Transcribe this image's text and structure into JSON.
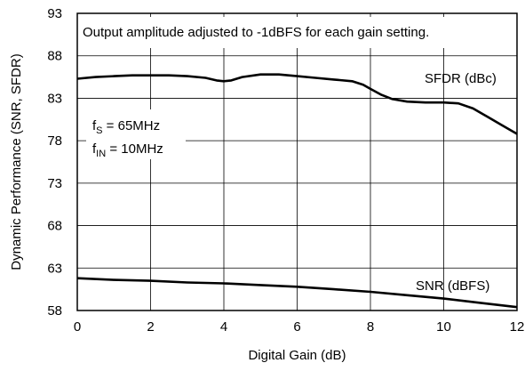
{
  "chart_data": {
    "type": "line",
    "title": "",
    "xlabel": "Digital Gain (dB)",
    "ylabel": "Dynamic Performance (SNR, SFDR)",
    "xlim": [
      0,
      12
    ],
    "ylim": [
      58,
      93
    ],
    "x_ticks": [
      0,
      2,
      4,
      6,
      8,
      10,
      12
    ],
    "y_ticks": [
      58,
      63,
      68,
      73,
      78,
      83,
      88,
      93
    ],
    "grid": true,
    "legend": "none",
    "annotations": {
      "box_note": "Output amplitude adjusted to -1dBFS for each gain setting.",
      "fs_label": "f",
      "fs_sub": "S",
      "fs_value": " = 65MHz",
      "fin_label": "f",
      "fin_sub": "IN",
      "fin_value": " = 10MHz"
    },
    "series": [
      {
        "name": "SFDR (dBc)",
        "x": [
          0,
          0.5,
          1,
          1.5,
          2,
          2.5,
          3,
          3.5,
          3.8,
          4,
          4.2,
          4.5,
          5,
          5.5,
          6,
          6.5,
          7,
          7.5,
          7.8,
          8,
          8.3,
          8.6,
          9,
          9.5,
          10,
          10.4,
          10.8,
          11.2,
          11.6,
          12
        ],
        "y": [
          85.3,
          85.5,
          85.6,
          85.7,
          85.7,
          85.7,
          85.6,
          85.4,
          85.1,
          85.0,
          85.1,
          85.5,
          85.8,
          85.8,
          85.6,
          85.4,
          85.2,
          85.0,
          84.6,
          84.1,
          83.4,
          82.9,
          82.6,
          82.5,
          82.5,
          82.4,
          81.8,
          80.8,
          79.8,
          78.8
        ]
      },
      {
        "name": "SNR (dBFS)",
        "x": [
          0,
          1,
          2,
          3,
          4,
          5,
          6,
          7,
          8,
          9,
          10,
          11,
          12
        ],
        "y": [
          61.8,
          61.6,
          61.5,
          61.3,
          61.2,
          61.0,
          60.8,
          60.5,
          60.2,
          59.8,
          59.4,
          58.9,
          58.4
        ]
      }
    ]
  }
}
